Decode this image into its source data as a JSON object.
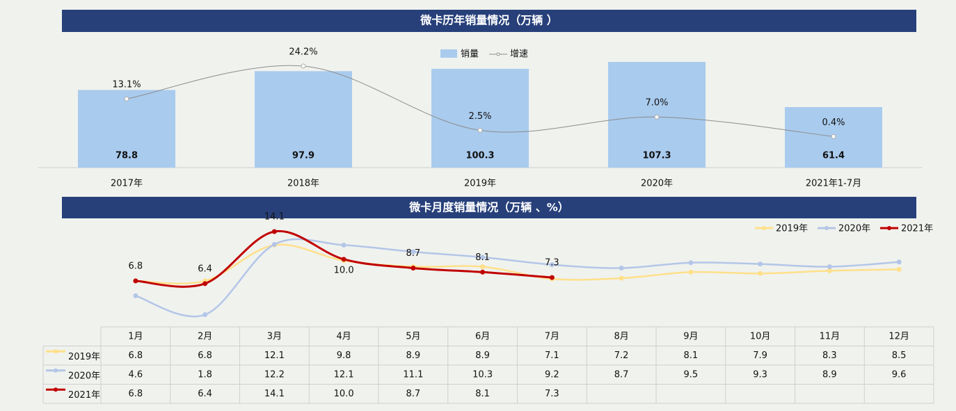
{
  "chart_data": [
    {
      "type": "combo",
      "title": "微卡历年销量情况（万辆 ）",
      "categories": [
        "2017年",
        "2018年",
        "2019年",
        "2020年",
        "2021年1-7月"
      ],
      "series": [
        {
          "name": "销量",
          "type": "bar",
          "color": "#a9cbee",
          "values": [
            78.8,
            97.9,
            100.3,
            107.3,
            61.4
          ]
        },
        {
          "name": "增速",
          "type": "line",
          "color": "#8c8c8c",
          "values": [
            13.1,
            24.2,
            2.5,
            7.0,
            0.4
          ],
          "value_labels": [
            "13.1%",
            "24.2%",
            "2.5%",
            "7.0%",
            "0.4%"
          ]
        }
      ]
    },
    {
      "type": "line",
      "title": "微卡月度销量情况（万辆 、%）",
      "table": true,
      "categories": [
        "1月",
        "2月",
        "3月",
        "4月",
        "5月",
        "6月",
        "7月",
        "8月",
        "9月",
        "10月",
        "11月",
        "12月"
      ],
      "series": [
        {
          "name": "2019年",
          "color": "#ffe08a",
          "values": [
            6.8,
            6.8,
            12.1,
            9.8,
            8.9,
            8.9,
            7.1,
            7.2,
            8.1,
            7.9,
            8.3,
            8.5
          ]
        },
        {
          "name": "2020年",
          "color": "#b4c6e7",
          "values": [
            4.6,
            1.8,
            12.2,
            12.1,
            11.1,
            10.3,
            9.2,
            8.7,
            9.5,
            9.3,
            8.9,
            9.6
          ]
        },
        {
          "name": "2021年",
          "color": "#c00000",
          "data_labels": true,
          "values": [
            6.8,
            6.4,
            14.1,
            10.0,
            8.7,
            8.1,
            7.3,
            null,
            null,
            null,
            null,
            null
          ],
          "value_labels": [
            "6.8",
            "6.4",
            "14.1",
            "10.0",
            "8.7",
            "8.1",
            "7.3",
            null,
            null,
            null,
            null,
            null
          ]
        }
      ]
    }
  ]
}
